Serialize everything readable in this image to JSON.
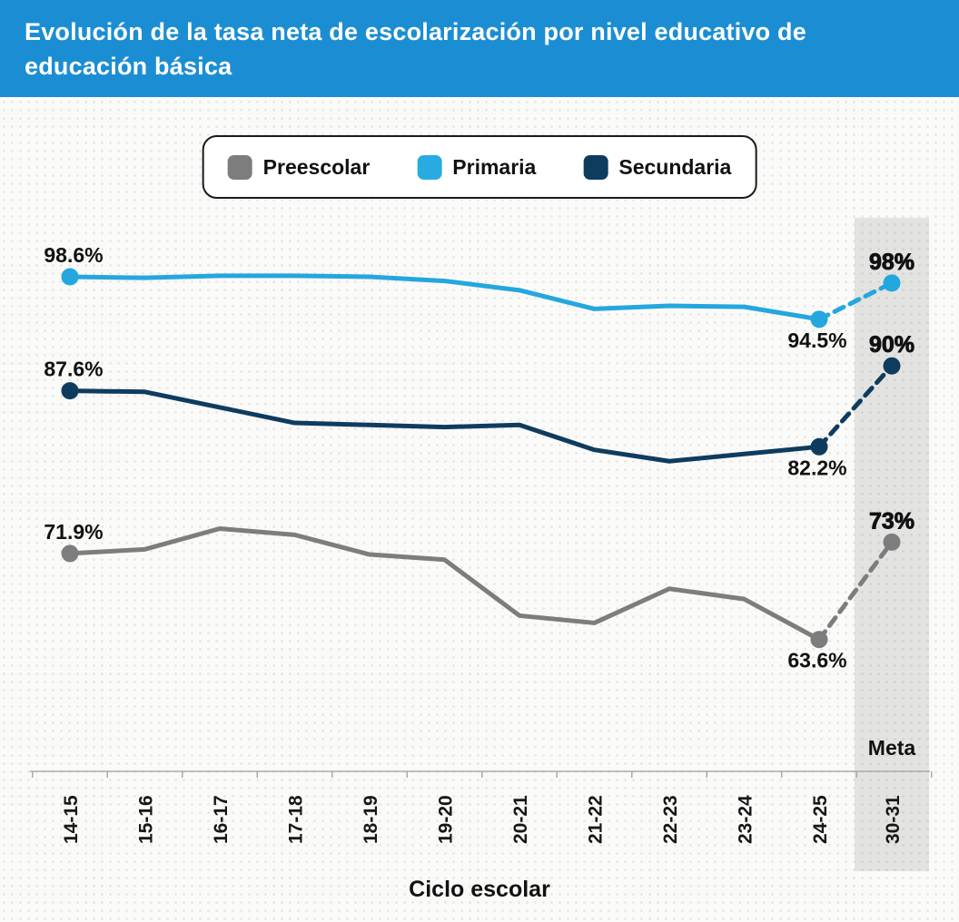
{
  "header": {
    "title_line1": "Evolución de la tasa neta de escolarización por nivel educativo de",
    "title_line2": "educación básica",
    "bg_color": "#1b8ed3",
    "text_color": "#ffffff"
  },
  "legend": {
    "items": [
      {
        "label": "Preescolar",
        "color": "#7d7d7d"
      },
      {
        "label": "Primaria",
        "color": "#29abe2"
      },
      {
        "label": "Secundaria",
        "color": "#0e3c5e"
      }
    ]
  },
  "chart_data": {
    "type": "line",
    "title": "Evolución de la tasa neta de escolarización por nivel educativo de educación básica",
    "xlabel": "Ciclo escolar",
    "ylabel": "",
    "ylim": [
      58,
      102
    ],
    "grid": false,
    "legend_position": "top-center",
    "categories": [
      "14-15",
      "15-16",
      "16-17",
      "17-18",
      "18-19",
      "19-20",
      "20-21",
      "21-22",
      "22-23",
      "23-24",
      "24-25"
    ],
    "meta_category": "30-31",
    "meta_column_label": "Meta",
    "series": [
      {
        "name": "Preescolar",
        "color": "#7d7d7d",
        "values": [
          71.9,
          72.3,
          74.3,
          73.7,
          71.8,
          71.3,
          65.9,
          65.2,
          68.5,
          67.5,
          63.6
        ],
        "first_label": "71.9%",
        "last_label": "63.6%",
        "meta_value": 73,
        "meta_label": "73%"
      },
      {
        "name": "Primaria",
        "color": "#24a7de",
        "values": [
          98.6,
          98.5,
          98.7,
          98.7,
          98.6,
          98.2,
          97.3,
          95.5,
          95.8,
          95.7,
          94.5
        ],
        "first_label": "98.6%",
        "last_label": "94.5%",
        "meta_value": 98,
        "meta_label": "98%"
      },
      {
        "name": "Secundaria",
        "color": "#0e3c5e",
        "values": [
          87.6,
          87.5,
          86.0,
          84.5,
          84.3,
          84.1,
          84.3,
          81.9,
          80.8,
          81.5,
          82.2
        ],
        "first_label": "87.6%",
        "last_label": "82.2%",
        "meta_value": 90,
        "meta_label": "90%"
      }
    ]
  }
}
